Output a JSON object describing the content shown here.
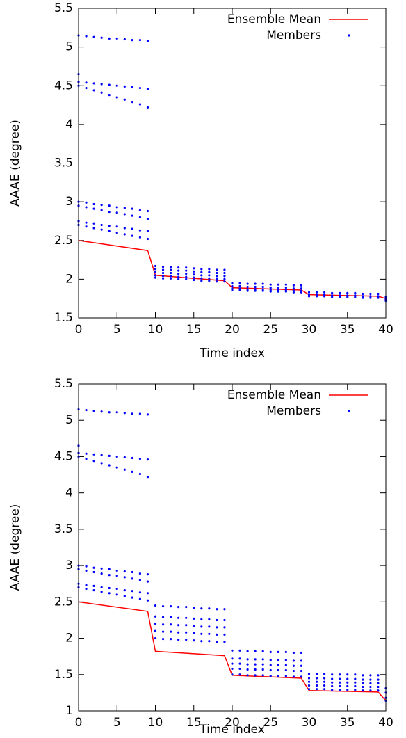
{
  "chart_data": [
    {
      "type": "scatter",
      "xlabel": "Time index",
      "ylabel": "AAAE (degree)",
      "xlim": [
        0,
        40
      ],
      "ylim": [
        1.5,
        5.5
      ],
      "xticks": [
        0,
        5,
        10,
        15,
        20,
        25,
        30,
        35,
        40
      ],
      "yticks": [
        1.5,
        2,
        2.5,
        3,
        3.5,
        4,
        4.5,
        5,
        5.5
      ],
      "legend": "upper right",
      "series": [
        {
          "name": "Ensemble Mean",
          "type": "line",
          "color": "#ff0000",
          "x": [
            0,
            9,
            10,
            19,
            20,
            29,
            30,
            39,
            40
          ],
          "values": [
            2.5,
            2.37,
            2.05,
            1.98,
            1.89,
            1.86,
            1.8,
            1.78,
            1.75
          ]
        },
        {
          "name": "Members",
          "type": "scatter",
          "color": "#0000ff",
          "x": [
            0,
            1,
            2,
            3,
            4,
            5,
            6,
            7,
            8,
            9,
            0,
            1,
            2,
            3,
            4,
            5,
            6,
            7,
            8,
            9,
            0,
            1,
            2,
            3,
            4,
            5,
            6,
            7,
            8,
            9,
            0,
            1,
            2,
            3,
            4,
            5,
            6,
            7,
            8,
            9,
            0,
            1,
            2,
            3,
            4,
            5,
            6,
            7,
            8,
            9,
            0,
            1,
            2,
            3,
            4,
            5,
            6,
            7,
            8,
            9,
            0,
            1,
            2,
            3,
            4,
            5,
            6,
            7,
            8,
            9,
            0,
            10,
            11,
            12,
            13,
            14,
            15,
            16,
            17,
            18,
            19,
            10,
            11,
            12,
            13,
            14,
            15,
            16,
            17,
            18,
            19,
            10,
            11,
            12,
            13,
            14,
            15,
            16,
            17,
            18,
            19,
            10,
            11,
            12,
            13,
            14,
            15,
            16,
            17,
            18,
            19,
            10,
            11,
            12,
            13,
            14,
            15,
            16,
            17,
            18,
            19,
            20,
            21,
            22,
            23,
            24,
            25,
            26,
            27,
            28,
            29,
            20,
            21,
            22,
            23,
            24,
            25,
            26,
            27,
            28,
            29,
            20,
            21,
            22,
            23,
            24,
            25,
            26,
            27,
            28,
            29,
            20,
            21,
            22,
            23,
            24,
            25,
            26,
            27,
            28,
            29,
            30,
            31,
            32,
            33,
            34,
            35,
            36,
            37,
            38,
            39,
            30,
            31,
            32,
            33,
            34,
            35,
            36,
            37,
            38,
            39,
            30,
            31,
            32,
            33,
            34,
            35,
            36,
            37,
            38,
            39,
            40,
            40,
            40
          ],
          "values": [
            5.15,
            5.14,
            5.13,
            5.12,
            5.11,
            5.11,
            5.1,
            5.09,
            5.09,
            5.08,
            4.55,
            4.54,
            4.53,
            4.52,
            4.51,
            4.5,
            4.49,
            4.48,
            4.47,
            4.46,
            4.5,
            4.47,
            4.44,
            4.41,
            4.38,
            4.35,
            4.32,
            4.29,
            4.26,
            4.22,
            3.0,
            2.99,
            2.97,
            2.96,
            2.95,
            2.93,
            2.92,
            2.91,
            2.89,
            2.88,
            2.95,
            2.93,
            2.91,
            2.89,
            2.87,
            2.86,
            2.84,
            2.82,
            2.8,
            2.78,
            2.75,
            2.73,
            2.72,
            2.7,
            2.69,
            2.68,
            2.66,
            2.65,
            2.63,
            2.62,
            2.7,
            2.68,
            2.66,
            2.64,
            2.62,
            2.6,
            2.58,
            2.56,
            2.54,
            2.52,
            4.65,
            2.17,
            2.16,
            2.16,
            2.15,
            2.15,
            2.14,
            2.13,
            2.13,
            2.12,
            2.12,
            2.13,
            2.12,
            2.12,
            2.11,
            2.11,
            2.1,
            2.09,
            2.09,
            2.08,
            2.08,
            2.09,
            2.08,
            2.08,
            2.07,
            2.07,
            2.06,
            2.05,
            2.05,
            2.04,
            2.04,
            2.05,
            2.04,
            2.04,
            2.03,
            2.03,
            2.02,
            2.01,
            2.01,
            2.0,
            2.0,
            2.02,
            2.01,
            2.01,
            2.0,
            2.0,
            1.99,
            1.98,
            1.98,
            1.97,
            1.97,
            1.95,
            1.95,
            1.94,
            1.94,
            1.94,
            1.93,
            1.93,
            1.93,
            1.92,
            1.92,
            1.91,
            1.91,
            1.9,
            1.9,
            1.9,
            1.89,
            1.89,
            1.89,
            1.88,
            1.88,
            1.88,
            1.88,
            1.87,
            1.87,
            1.87,
            1.86,
            1.86,
            1.86,
            1.85,
            1.85,
            1.86,
            1.86,
            1.85,
            1.85,
            1.85,
            1.84,
            1.84,
            1.84,
            1.83,
            1.83,
            1.83,
            1.83,
            1.83,
            1.82,
            1.82,
            1.82,
            1.82,
            1.81,
            1.81,
            1.81,
            1.8,
            1.8,
            1.8,
            1.79,
            1.79,
            1.79,
            1.79,
            1.78,
            1.78,
            1.78,
            1.78,
            1.78,
            1.78,
            1.77,
            1.77,
            1.77,
            1.77,
            1.76,
            1.76,
            1.76,
            1.77,
            1.74,
            1.72
          ]
        }
      ]
    },
    {
      "type": "scatter",
      "xlabel": "Time index",
      "ylabel": "AAAE (degree)",
      "xlim": [
        0,
        40
      ],
      "ylim": [
        1,
        5.5
      ],
      "xticks": [
        0,
        5,
        10,
        15,
        20,
        25,
        30,
        35,
        40
      ],
      "yticks": [
        1,
        1.5,
        2,
        2.5,
        3,
        3.5,
        4,
        4.5,
        5,
        5.5
      ],
      "legend": "upper right",
      "series": [
        {
          "name": "Ensemble Mean",
          "type": "line",
          "color": "#ff0000",
          "x": [
            0,
            9,
            10,
            19,
            20,
            29,
            30,
            39,
            40
          ],
          "values": [
            2.5,
            2.37,
            1.82,
            1.76,
            1.49,
            1.45,
            1.28,
            1.26,
            1.14
          ]
        },
        {
          "name": "Members",
          "type": "scatter",
          "color": "#0000ff",
          "x": [
            0,
            1,
            2,
            3,
            4,
            5,
            6,
            7,
            8,
            9,
            0,
            1,
            2,
            3,
            4,
            5,
            6,
            7,
            8,
            9,
            0,
            1,
            2,
            3,
            4,
            5,
            6,
            7,
            8,
            9,
            0,
            1,
            2,
            3,
            4,
            5,
            6,
            7,
            8,
            9,
            0,
            1,
            2,
            3,
            4,
            5,
            6,
            7,
            8,
            9,
            0,
            1,
            2,
            3,
            4,
            5,
            6,
            7,
            8,
            9,
            0,
            1,
            2,
            3,
            4,
            5,
            6,
            7,
            8,
            9,
            0,
            10,
            11,
            12,
            13,
            14,
            15,
            16,
            17,
            18,
            19,
            10,
            11,
            12,
            13,
            14,
            15,
            16,
            17,
            18,
            19,
            10,
            11,
            12,
            13,
            14,
            15,
            16,
            17,
            18,
            19,
            10,
            11,
            12,
            13,
            14,
            15,
            16,
            17,
            18,
            19,
            10,
            11,
            12,
            13,
            14,
            15,
            16,
            17,
            18,
            19,
            20,
            21,
            22,
            23,
            24,
            25,
            26,
            27,
            28,
            29,
            20,
            21,
            22,
            23,
            24,
            25,
            26,
            27,
            28,
            29,
            20,
            21,
            22,
            23,
            24,
            25,
            26,
            27,
            28,
            29,
            20,
            21,
            22,
            23,
            24,
            25,
            26,
            27,
            28,
            29,
            20,
            21,
            22,
            23,
            24,
            25,
            26,
            27,
            28,
            29,
            30,
            31,
            32,
            33,
            34,
            35,
            36,
            37,
            38,
            39,
            30,
            31,
            32,
            33,
            34,
            35,
            36,
            37,
            38,
            39,
            30,
            31,
            32,
            33,
            34,
            35,
            36,
            37,
            38,
            39,
            30,
            31,
            32,
            33,
            34,
            35,
            36,
            37,
            38,
            39,
            30,
            31,
            32,
            33,
            34,
            35,
            36,
            37,
            38,
            39,
            40,
            40,
            40,
            40
          ],
          "values": [
            5.15,
            5.14,
            5.13,
            5.12,
            5.11,
            5.11,
            5.1,
            5.09,
            5.09,
            5.08,
            4.55,
            4.54,
            4.53,
            4.52,
            4.51,
            4.5,
            4.49,
            4.48,
            4.47,
            4.46,
            4.5,
            4.47,
            4.44,
            4.41,
            4.38,
            4.35,
            4.32,
            4.29,
            4.26,
            4.22,
            3.0,
            2.99,
            2.97,
            2.96,
            2.95,
            2.93,
            2.92,
            2.91,
            2.89,
            2.88,
            2.95,
            2.93,
            2.91,
            2.89,
            2.87,
            2.86,
            2.84,
            2.82,
            2.8,
            2.78,
            2.75,
            2.73,
            2.72,
            2.7,
            2.69,
            2.68,
            2.66,
            2.65,
            2.63,
            2.62,
            2.7,
            2.68,
            2.66,
            2.64,
            2.62,
            2.6,
            2.58,
            2.56,
            2.54,
            2.52,
            4.65,
            2.45,
            2.44,
            2.44,
            2.43,
            2.43,
            2.42,
            2.41,
            2.41,
            2.4,
            2.4,
            2.3,
            2.29,
            2.29,
            2.28,
            2.28,
            2.27,
            2.26,
            2.26,
            2.25,
            2.25,
            2.2,
            2.19,
            2.19,
            2.18,
            2.18,
            2.17,
            2.16,
            2.16,
            2.15,
            2.15,
            2.1,
            2.09,
            2.09,
            2.08,
            2.08,
            2.07,
            2.06,
            2.06,
            2.05,
            2.05,
            2.0,
            1.99,
            1.99,
            1.98,
            1.98,
            1.97,
            1.96,
            1.96,
            1.95,
            1.95,
            1.83,
            1.83,
            1.82,
            1.82,
            1.82,
            1.81,
            1.81,
            1.81,
            1.8,
            1.8,
            1.72,
            1.72,
            1.71,
            1.71,
            1.71,
            1.7,
            1.7,
            1.7,
            1.69,
            1.69,
            1.65,
            1.65,
            1.64,
            1.64,
            1.64,
            1.63,
            1.63,
            1.63,
            1.62,
            1.62,
            1.58,
            1.58,
            1.57,
            1.57,
            1.57,
            1.56,
            1.56,
            1.56,
            1.55,
            1.55,
            1.5,
            1.5,
            1.49,
            1.49,
            1.49,
            1.48,
            1.48,
            1.48,
            1.47,
            1.47,
            1.51,
            1.51,
            1.51,
            1.5,
            1.5,
            1.5,
            1.5,
            1.49,
            1.49,
            1.49,
            1.45,
            1.45,
            1.45,
            1.44,
            1.44,
            1.44,
            1.44,
            1.43,
            1.43,
            1.43,
            1.4,
            1.4,
            1.4,
            1.39,
            1.39,
            1.39,
            1.39,
            1.38,
            1.38,
            1.38,
            1.35,
            1.35,
            1.35,
            1.34,
            1.34,
            1.34,
            1.34,
            1.33,
            1.33,
            1.33,
            1.3,
            1.3,
            1.3,
            1.29,
            1.29,
            1.29,
            1.29,
            1.28,
            1.28,
            1.28,
            1.31,
            1.25,
            1.18,
            1.14
          ]
        }
      ]
    }
  ]
}
